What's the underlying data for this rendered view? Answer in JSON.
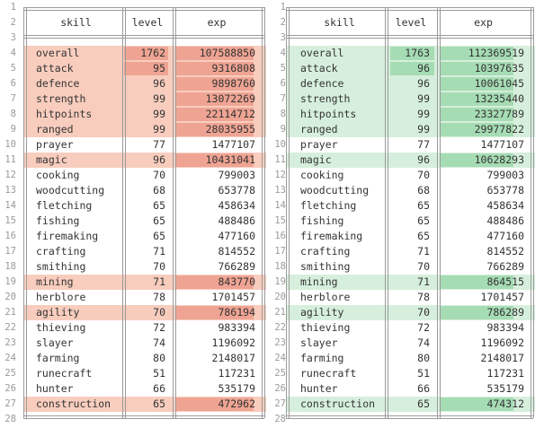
{
  "line_numbers": [
    "1",
    "2",
    "3",
    "4",
    "5",
    "6",
    "7",
    "8",
    "9",
    "10",
    "11",
    "12",
    "13",
    "14",
    "15",
    "16",
    "17",
    "18",
    "19",
    "20",
    "21",
    "22",
    "23",
    "24",
    "25",
    "26",
    "27",
    "28"
  ],
  "headers": {
    "skill": "skill",
    "level": "level",
    "exp": "exp"
  },
  "colors": {
    "removed_row": "#f8cdbe",
    "removed_cell": "#efa493",
    "added_row": "#d6efdc",
    "added_cell": "#a6dcb4"
  },
  "left": {
    "rows": [
      {
        "skill": "overall",
        "level": "1762",
        "exp": "107588850",
        "changed": true,
        "level_changed": true,
        "exp_changed": true
      },
      {
        "skill": "attack",
        "level": "95",
        "exp": "9316808",
        "changed": true,
        "level_changed": true,
        "exp_changed": true
      },
      {
        "skill": "defence",
        "level": "96",
        "exp": "9898760",
        "changed": true,
        "level_changed": false,
        "exp_changed": true
      },
      {
        "skill": "strength",
        "level": "99",
        "exp": "13072269",
        "changed": true,
        "level_changed": false,
        "exp_changed": true
      },
      {
        "skill": "hitpoints",
        "level": "99",
        "exp": "22114712",
        "changed": true,
        "level_changed": false,
        "exp_changed": true
      },
      {
        "skill": "ranged",
        "level": "99",
        "exp": "28035955",
        "changed": true,
        "level_changed": false,
        "exp_changed": true
      },
      {
        "skill": "prayer",
        "level": "77",
        "exp": "1477107",
        "changed": false
      },
      {
        "skill": "magic",
        "level": "96",
        "exp": "10431041",
        "changed": true,
        "level_changed": false,
        "exp_changed": true
      },
      {
        "skill": "cooking",
        "level": "70",
        "exp": "799003",
        "changed": false
      },
      {
        "skill": "woodcutting",
        "level": "68",
        "exp": "653778",
        "changed": false
      },
      {
        "skill": "fletching",
        "level": "65",
        "exp": "458634",
        "changed": false
      },
      {
        "skill": "fishing",
        "level": "65",
        "exp": "488486",
        "changed": false
      },
      {
        "skill": "firemaking",
        "level": "65",
        "exp": "477160",
        "changed": false
      },
      {
        "skill": "crafting",
        "level": "71",
        "exp": "814552",
        "changed": false
      },
      {
        "skill": "smithing",
        "level": "70",
        "exp": "766289",
        "changed": false
      },
      {
        "skill": "mining",
        "level": "71",
        "exp": "843770",
        "changed": true,
        "level_changed": false,
        "exp_changed": true
      },
      {
        "skill": "herblore",
        "level": "78",
        "exp": "1701457",
        "changed": false
      },
      {
        "skill": "agility",
        "level": "70",
        "exp": "786194",
        "changed": true,
        "level_changed": false,
        "exp_changed": true
      },
      {
        "skill": "thieving",
        "level": "72",
        "exp": "983394",
        "changed": false
      },
      {
        "skill": "slayer",
        "level": "74",
        "exp": "1196092",
        "changed": false
      },
      {
        "skill": "farming",
        "level": "80",
        "exp": "2148017",
        "changed": false
      },
      {
        "skill": "runecraft",
        "level": "51",
        "exp": "117231",
        "changed": false
      },
      {
        "skill": "hunter",
        "level": "66",
        "exp": "535179",
        "changed": false
      },
      {
        "skill": "construction",
        "level": "65",
        "exp": "472962",
        "changed": true,
        "level_changed": false,
        "exp_changed": true
      }
    ]
  },
  "right": {
    "rows": [
      {
        "skill": "overall",
        "level": "1763",
        "exp": "112369519",
        "changed": true,
        "level_changed": true,
        "exp_changed": true
      },
      {
        "skill": "attack",
        "level": "96",
        "exp": "10397635",
        "changed": true,
        "level_changed": true,
        "exp_changed": true
      },
      {
        "skill": "defence",
        "level": "96",
        "exp": "10061045",
        "changed": true,
        "level_changed": false,
        "exp_changed": true
      },
      {
        "skill": "strength",
        "level": "99",
        "exp": "13235440",
        "changed": true,
        "level_changed": false,
        "exp_changed": true
      },
      {
        "skill": "hitpoints",
        "level": "99",
        "exp": "23327789",
        "changed": true,
        "level_changed": false,
        "exp_changed": true
      },
      {
        "skill": "ranged",
        "level": "99",
        "exp": "29977822",
        "changed": true,
        "level_changed": false,
        "exp_changed": true
      },
      {
        "skill": "prayer",
        "level": "77",
        "exp": "1477107",
        "changed": false
      },
      {
        "skill": "magic",
        "level": "96",
        "exp": "10628293",
        "changed": true,
        "level_changed": false,
        "exp_changed": true
      },
      {
        "skill": "cooking",
        "level": "70",
        "exp": "799003",
        "changed": false
      },
      {
        "skill": "woodcutting",
        "level": "68",
        "exp": "653778",
        "changed": false
      },
      {
        "skill": "fletching",
        "level": "65",
        "exp": "458634",
        "changed": false
      },
      {
        "skill": "fishing",
        "level": "65",
        "exp": "488486",
        "changed": false
      },
      {
        "skill": "firemaking",
        "level": "65",
        "exp": "477160",
        "changed": false
      },
      {
        "skill": "crafting",
        "level": "71",
        "exp": "814552",
        "changed": false
      },
      {
        "skill": "smithing",
        "level": "70",
        "exp": "766289",
        "changed": false
      },
      {
        "skill": "mining",
        "level": "71",
        "exp": "864515",
        "changed": true,
        "level_changed": false,
        "exp_changed": true
      },
      {
        "skill": "herblore",
        "level": "78",
        "exp": "1701457",
        "changed": false
      },
      {
        "skill": "agility",
        "level": "70",
        "exp": "786289",
        "changed": true,
        "level_changed": false,
        "exp_changed": true
      },
      {
        "skill": "thieving",
        "level": "72",
        "exp": "983394",
        "changed": false
      },
      {
        "skill": "slayer",
        "level": "74",
        "exp": "1196092",
        "changed": false
      },
      {
        "skill": "farming",
        "level": "80",
        "exp": "2148017",
        "changed": false
      },
      {
        "skill": "runecraft",
        "level": "51",
        "exp": "117231",
        "changed": false
      },
      {
        "skill": "hunter",
        "level": "66",
        "exp": "535179",
        "changed": false
      },
      {
        "skill": "construction",
        "level": "65",
        "exp": "474312",
        "changed": true,
        "level_changed": false,
        "exp_changed": true
      }
    ]
  }
}
